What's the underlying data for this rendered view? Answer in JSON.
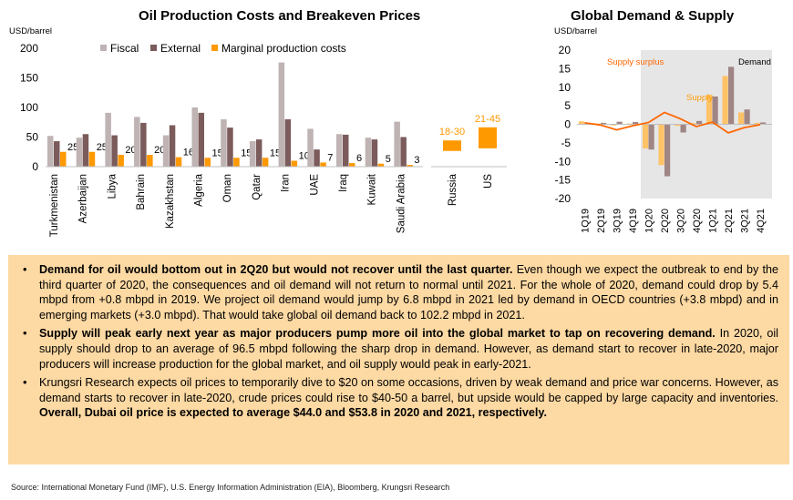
{
  "chart_data": [
    {
      "type": "bar",
      "title": "Oil Production Costs and Breakeven Prices",
      "ylabel": "USD/barrel",
      "ylim": [
        0,
        200
      ],
      "yticks": [
        0,
        50,
        100,
        150,
        200
      ],
      "legend": [
        "Fiscal",
        "External",
        "Marginal production costs"
      ],
      "colors": {
        "fiscal": "#bfb3b3",
        "external": "#7b5b5b",
        "marginal": "#ff9900"
      },
      "categories": [
        "Turkmenistan",
        "Azerbaijan",
        "Libya",
        "Bahrain",
        "Kazakhstan",
        "Algeria",
        "Oman",
        "Qatar",
        "Iran",
        "UAE",
        "Iraq",
        "Kuwait",
        "Saudi Arabia"
      ],
      "series": [
        {
          "name": "Fiscal",
          "values": [
            52,
            49,
            91,
            84,
            53,
            100,
            80,
            43,
            176,
            64,
            55,
            49,
            76
          ]
        },
        {
          "name": "External",
          "values": [
            43,
            55,
            53,
            74,
            70,
            91,
            66,
            46,
            80,
            29,
            54,
            46,
            50
          ]
        },
        {
          "name": "Marginal production costs",
          "values": [
            25,
            25,
            20,
            20,
            16,
            15,
            15,
            15,
            10,
            7,
            6,
            5,
            3
          ]
        }
      ],
      "data_labels": [
        "25",
        "25",
        "20",
        "20",
        "16",
        "15",
        "15",
        "15",
        "10",
        "7",
        "6",
        "5",
        "3"
      ]
    },
    {
      "type": "bar",
      "title": "",
      "categories": [
        "Russia",
        "US"
      ],
      "ranges": [
        [
          18,
          30
        ],
        [
          21,
          45
        ]
      ],
      "range_labels": [
        "18-30",
        "21-45"
      ],
      "color": "#ff9900"
    },
    {
      "type": "bar",
      "title": "Global Demand & Supply",
      "ylabel": "USD/barrel",
      "ylim": [
        -20,
        20
      ],
      "yticks": [
        20,
        15,
        10,
        5,
        0,
        -5,
        -10,
        -15,
        -20
      ],
      "categories": [
        "1Q19",
        "2Q19",
        "3Q19",
        "4Q19",
        "1Q20",
        "2Q20",
        "3Q20",
        "4Q20",
        "1Q21",
        "2Q21",
        "3Q21",
        "4Q21"
      ],
      "series": [
        {
          "name": "Supply",
          "values": [
            0.8,
            0.2,
            -0.3,
            0.2,
            -6.5,
            -11,
            -0.4,
            0.3,
            8,
            13,
            3.2,
            0.4
          ]
        },
        {
          "name": "Demand",
          "values": [
            0.4,
            0.4,
            0.7,
            0.6,
            -6.8,
            -14,
            -2.2,
            0.9,
            7.5,
            15.5,
            4,
            0.5
          ]
        },
        {
          "name": "Supply surplus",
          "values": [
            0.4,
            -0.2,
            -1.5,
            -0.4,
            0.5,
            3.2,
            1.5,
            -0.6,
            0.6,
            -2.3,
            -0.9,
            -0.1
          ]
        }
      ],
      "annotations": [
        "Supply surplus",
        "Supply",
        "Demand"
      ],
      "shaded_from": "1Q20",
      "colors": {
        "supply": "#ffc266",
        "demand": "#a08585",
        "surplus": "#ff6600",
        "shade": "#e6e6e6"
      }
    }
  ],
  "bullets": [
    {
      "bold": "Demand for oil would bottom out in 2Q20 but would not recover until the last quarter.",
      "text": " Even though we expect the outbreak to end by the third quarter of 2020, the consequences and oil demand will not return to normal until 2021. For the whole of 2020, demand could  drop by 5.4 mbpd from +0.8 mbpd in 2019. We project oil demand would jump by 6.8 mbpd in 2021 led by demand in OECD countries (+3.8 mbpd) and in emerging markets (+3.0 mbpd). That would take global oil demand back to 102.2 mbpd in 2021."
    },
    {
      "bold": "Supply will peak early next year as major producers pump more oil into the global market to tap on recovering demand.",
      "text": " In 2020, oil supply should drop to an average of 96.5 mbpd following the sharp drop in demand. However, as demand start to recover in late-2020, major producers will increase production for the global market, and oil supply would peak in early-2021."
    },
    {
      "text": "Krungsri Research expects oil prices to temporarily dive to $20 on some occasions, driven by weak demand and price war concerns. However, as demand starts to recover in late-2020, crude prices could rise to $40-50 a barrel, but upside would be capped by large capacity and inventories. ",
      "bold_end": "Overall, Dubai oil price is expected to average $44.0 and $53.8 in 2020 and 2021, respectively."
    }
  ],
  "source": "Source: International Monetary Fund (IMF), U.S. Energy Information Administration (EIA), Bloomberg, Krungsri Research"
}
